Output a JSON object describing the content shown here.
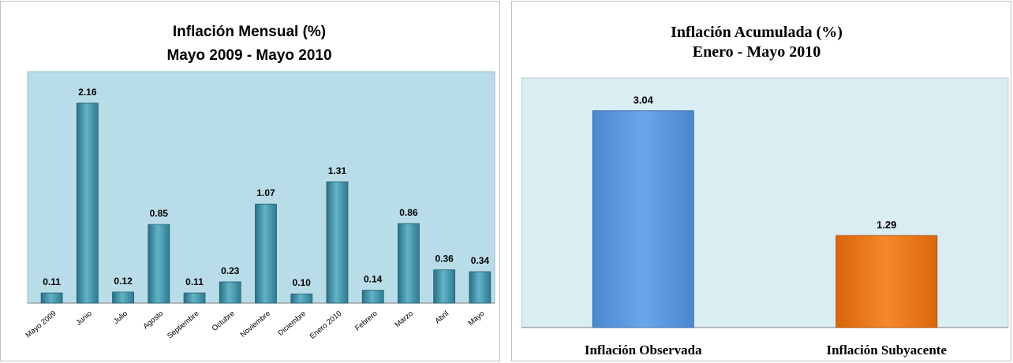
{
  "chart_data": [
    {
      "type": "bar",
      "title": "Inflación Mensual (%)",
      "subtitle": "Mayo 2009 -  Mayo 2010",
      "categories": [
        "Mayo 2009",
        "Junio",
        "Julio",
        "Agosto",
        "Septiembre",
        "Octubre",
        "Noviembre",
        "Diciembre",
        "Enero 2010",
        "Febrero",
        "Marzo",
        "Abril",
        "Mayo"
      ],
      "values": [
        0.11,
        2.16,
        0.12,
        0.85,
        0.11,
        0.23,
        1.07,
        0.1,
        1.31,
        0.14,
        0.86,
        0.36,
        0.34
      ],
      "value_labels": [
        "0.11",
        "2.16",
        "0.12",
        "0.85",
        "0.11",
        "0.23",
        "1.07",
        "0.10",
        "1.31",
        "0.14",
        "0.86",
        "0.36",
        "0.34"
      ],
      "ylim": [
        0,
        2.5
      ],
      "grid": false,
      "colors": {
        "bar": "#3a8ba0",
        "bar_light": "#62b3c7",
        "plot_bg": "#b9dde8"
      }
    },
    {
      "type": "bar",
      "title": "Inflación Acumulada (%)",
      "subtitle": "Enero - Mayo  2010",
      "categories": [
        "Inflación Observada",
        "Inflación Subyacente"
      ],
      "values": [
        3.04,
        1.29
      ],
      "value_labels": [
        "3.04",
        "1.29"
      ],
      "ylim": [
        0,
        3.5
      ],
      "grid": false,
      "colors": {
        "bars": [
          "#5b9be3",
          "#ee7a14"
        ],
        "plot_bg": "#daedf3"
      }
    }
  ]
}
